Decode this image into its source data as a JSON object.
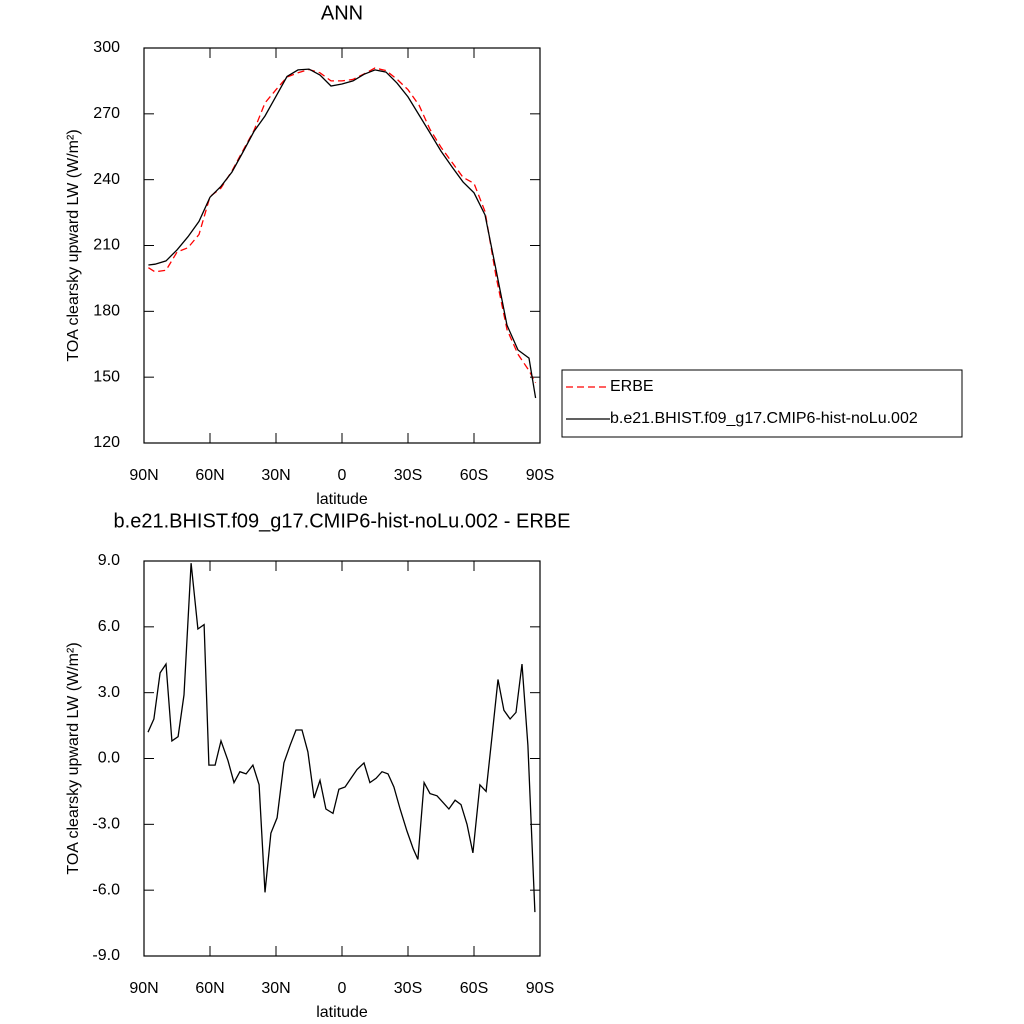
{
  "chart_data": [
    {
      "type": "line",
      "title": "ANN",
      "xlabel": "latitude",
      "ylabel": "TOA clearsky upward LW (W/m²)",
      "x": [
        88,
        85,
        80,
        75,
        70,
        65,
        60,
        55,
        50,
        45,
        40,
        35,
        30,
        25,
        20,
        15,
        10,
        5,
        0,
        -5,
        -10,
        -15,
        -20,
        -25,
        -30,
        -35,
        -40,
        -45,
        -50,
        -55,
        -60,
        -65,
        -70,
        -75,
        -80,
        -85,
        -88
      ],
      "series": [
        {
          "name": "ERBE",
          "color": "#ff0000",
          "linestyle": "dashed",
          "values": [
            199.9,
            198.0,
            198.7,
            207.0,
            209.0,
            215.0,
            232.3,
            236.2,
            244.0,
            253.3,
            262.4,
            275.0,
            281.0,
            286.8,
            288.7,
            290.2,
            288.7,
            285.0,
            285.0,
            285.7,
            288.2,
            290.9,
            289.7,
            285.8,
            281.0,
            274.0,
            262.9,
            254.8,
            247.9,
            241.1,
            238.3,
            225.5,
            196.0,
            171.7,
            160.4,
            153.0,
            147.5
          ]
        },
        {
          "name": "b.e21.BHIST.f09_g17.CMIP6-hist-noLu.002",
          "color": "#000000",
          "linestyle": "solid",
          "values": [
            201.1,
            201.5,
            203.0,
            208.0,
            214.0,
            221.0,
            232.0,
            237.0,
            243.5,
            252.6,
            262.0,
            269.0,
            278.0,
            287.0,
            290.0,
            290.4,
            287.7,
            282.7,
            283.6,
            285.0,
            288.0,
            290.0,
            289.0,
            284.0,
            277.7,
            269.5,
            261.3,
            253.0,
            245.8,
            239.0,
            234.0,
            224.0,
            199.0,
            173.7,
            162.4,
            158.7,
            140.5
          ]
        }
      ],
      "xlim": [
        90,
        -90
      ],
      "xticks": [
        {
          "value": 90,
          "label": "90N"
        },
        {
          "value": 60,
          "label": "60N"
        },
        {
          "value": 30,
          "label": "30N"
        },
        0,
        {
          "value": -30,
          "label": "30S"
        },
        {
          "value": -60,
          "label": "60S"
        },
        {
          "value": -90,
          "label": "90S"
        }
      ],
      "ylim": [
        120,
        300
      ],
      "yticks": [
        120,
        150,
        180,
        210,
        240,
        270,
        300
      ],
      "legend": "right"
    },
    {
      "type": "line",
      "title": "b.e21.BHIST.f09_g17.CMIP6-hist-noLu.002 - ERBE",
      "xlabel": "latitude",
      "ylabel": "TOA clearsky upward LW (W/m²)",
      "x": [
        88.2,
        85.5,
        82.7,
        80,
        77.3,
        74.5,
        71.8,
        68.6,
        65.5,
        62.7,
        60.5,
        57.7,
        55,
        51.8,
        49.1,
        46.4,
        43.6,
        40.5,
        37.7,
        35,
        32.3,
        29.5,
        26.4,
        23.6,
        20.9,
        18.2,
        15.5,
        12.7,
        10,
        7.3,
        4.1,
        1.4,
        -1.4,
        -4.1,
        -6.8,
        -10,
        -12.7,
        -15.5,
        -18.2,
        -20.9,
        -23.6,
        -26.4,
        -29.5,
        -32.3,
        -34.5,
        -37.3,
        -40,
        -43.2,
        -45.9,
        -48.6,
        -51.4,
        -54.1,
        -56.8,
        -59.5,
        -62.7,
        -65.5,
        -68.2,
        -70.9,
        -73.6,
        -76.4,
        -79.1,
        -81.8,
        -84.5,
        -87.7
      ],
      "series": [
        {
          "color": "#000000",
          "linestyle": "solid",
          "values": [
            1.2,
            1.8,
            3.9,
            4.3,
            0.8,
            1.0,
            2.9,
            8.9,
            5.9,
            6.1,
            -0.3,
            -0.3,
            0.8,
            -0.1,
            -1.1,
            -0.6,
            -0.7,
            -0.3,
            -1.2,
            -6.1,
            -3.4,
            -2.7,
            -0.2,
            0.6,
            1.3,
            1.3,
            0.3,
            -1.8,
            -1.0,
            -2.3,
            -2.5,
            -1.4,
            -1.3,
            -0.9,
            -0.5,
            -0.2,
            -1.1,
            -0.9,
            -0.6,
            -0.7,
            -1.3,
            -2.3,
            -3.3,
            -4.1,
            -4.6,
            -1.1,
            -1.6,
            -1.7,
            -2.0,
            -2.3,
            -1.9,
            -2.1,
            -3.0,
            -4.3,
            -1.2,
            -1.5,
            1.0,
            3.6,
            2.2,
            1.8,
            2.1,
            4.3,
            0.6,
            -7.0
          ]
        }
      ],
      "xlim": [
        90,
        -90
      ],
      "xticks": [
        {
          "value": 90,
          "label": "90N"
        },
        {
          "value": 60,
          "label": "60N"
        },
        {
          "value": 30,
          "label": "30N"
        },
        0,
        {
          "value": -30,
          "label": "30S"
        },
        {
          "value": -60,
          "label": "60S"
        },
        {
          "value": -90,
          "label": "90S"
        }
      ],
      "ylim": [
        -9,
        9
      ],
      "yticks": [
        {
          "value": -9,
          "label": "-9.0"
        },
        {
          "value": -6,
          "label": "-6.0"
        },
        {
          "value": -3,
          "label": "-3.0"
        },
        {
          "value": 0,
          "label": "0.0"
        },
        {
          "value": 3,
          "label": "3.0"
        },
        {
          "value": 6,
          "label": "6.0"
        },
        {
          "value": 9,
          "label": "9.0"
        }
      ]
    }
  ]
}
